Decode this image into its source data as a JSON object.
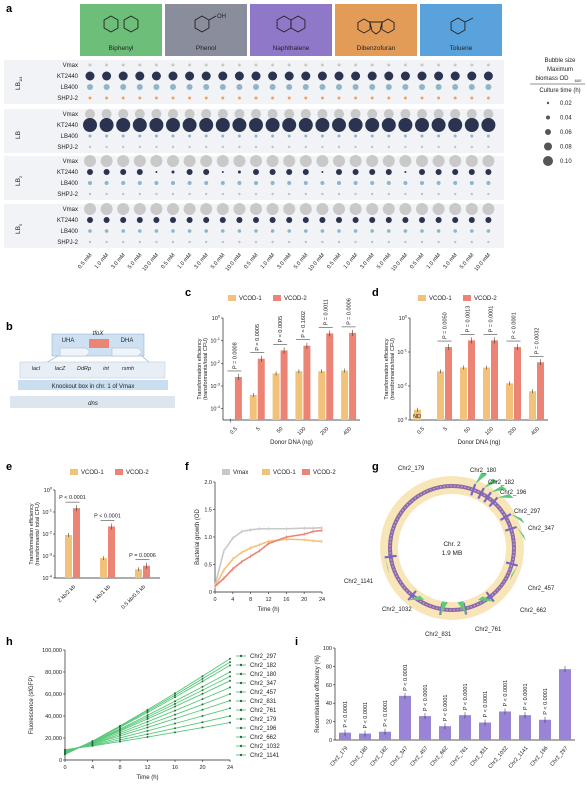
{
  "panel_labels": {
    "a": "a",
    "b": "b",
    "c": "c",
    "d": "d",
    "e": "e",
    "f": "f",
    "g": "g",
    "h": "h",
    "i": "i"
  },
  "colors": {
    "vmax": "#c9c9c9",
    "vcod1": "#f2c27b",
    "vcod2": "#ec8476",
    "kt": "#2b3350",
    "lb400": "#8fb4cc",
    "shpj": "#f0a25d",
    "purple": "#9a84d6",
    "green": "#5ec97a",
    "ring": "#f8e5b8"
  },
  "panel_a": {
    "substrates": [
      {
        "name": "Biphenyl",
        "color": "#6dbe78"
      },
      {
        "name": "Phenol",
        "color": "#8a8d9c"
      },
      {
        "name": "Naphthalene",
        "color": "#8f78c8"
      },
      {
        "name": "Dibenzofuran",
        "color": "#e39c58"
      },
      {
        "name": "Toluene",
        "color": "#5aa2db"
      }
    ],
    "phenol_oh": "OH",
    "media": [
      {
        "label": "LB",
        "sub": "1/4"
      },
      {
        "label": "LB",
        "sub": ""
      },
      {
        "label": "LB",
        "sub": "2"
      },
      {
        "label": "LB",
        "sub": "5"
      }
    ],
    "strains": [
      "Vmax",
      "KT2440",
      "LB400",
      "SHPJ-2"
    ],
    "concentrations": [
      "0.5 mM",
      "1.0 mM",
      "3.0 mM",
      "5.0 mM",
      "10.0 mM"
    ],
    "legend_title_1": "Bubble size",
    "legend_title_2": "Maximum",
    "legend_title_3": "biomass OD",
    "legend_title_sub": "600",
    "legend_subtitle": "Culture time (h)",
    "legend_sizes": [
      "0.02",
      "0.04",
      "0.06",
      "0.08",
      "0.10"
    ]
  },
  "panel_b": {
    "uha": "UHA",
    "dha": "DHA",
    "tfox": "tfoX",
    "laci": "lacI",
    "lacz": "lacZ",
    "ddrp": "DdRp",
    "int": "int",
    "rsmh": "rsmh",
    "knockout": "Knockout box in chr. 1 of Vmax",
    "dns": "dns"
  },
  "panel_c": {
    "legend": [
      "VCOD-1",
      "VCOD-2"
    ],
    "ylabel_1": "Transformation efficiency",
    "ylabel_2": "(transformants/total CFU)",
    "xlabel": "Donor DNA (ng)",
    "categories": [
      "0.5",
      "5",
      "50",
      "100",
      "200",
      "400"
    ],
    "vcod1": [
      3e-05,
      0.0004,
      0.0036,
      0.0045,
      0.0045,
      0.0048
    ],
    "vcod2": [
      0.0025,
      0.016,
      0.037,
      0.06,
      0.21,
      0.22
    ],
    "pvalues": [
      "P = 0.0008",
      "P = 0.0005",
      "P = 0.0005",
      "P = 0.1602",
      "P = 0.0011",
      "P = 0.0006"
    ],
    "yticks": [
      "10^0",
      "10^-1",
      "10^-2",
      "10^-3",
      "10^-4"
    ]
  },
  "panel_d": {
    "legend": [
      "VCOD-1",
      "VCOD-2"
    ],
    "ylabel_1": "Transformation efficiency",
    "ylabel_2": "(transformants/total CFU)",
    "xlabel": "Donor DNA (ng)",
    "categories": [
      "0.5",
      "5",
      "50",
      "100",
      "200",
      "400"
    ],
    "vcod1": [
      0.002,
      0.027,
      0.035,
      0.035,
      0.012,
      0.007
    ],
    "vcod2": [
      null,
      0.14,
      0.22,
      0.22,
      0.14,
      0.05
    ],
    "nd": "ND",
    "pvalues": [
      "P = 0.0050",
      "P = 0.0013",
      "P = 0.0001",
      "P < 0.0001",
      "P = 0.0032"
    ],
    "yticks": [
      "10^0",
      "10^-1",
      "10^-2",
      "10^-3"
    ]
  },
  "panel_e": {
    "legend": [
      "VCOD-1",
      "VCOD-2"
    ],
    "ylabel_1": "Transformation efficiency",
    "ylabel_2": "(transformants/ total CFU)",
    "categories": [
      "2 kb/2 kb",
      "1 kb/1 kb",
      "0.5 kb/0.5 kb"
    ],
    "vcod1": [
      0.009,
      0.0008,
      0.00025
    ],
    "vcod2": [
      0.15,
      0.022,
      0.00036
    ],
    "pvalues": [
      "P < 0.0001",
      "P < 0.0001",
      "P = 0.0006"
    ],
    "yticks": [
      "10^0",
      "10^-1",
      "10^-2",
      "10^-3",
      "10^-4"
    ]
  },
  "panel_f": {
    "legend": [
      "Vmax",
      "VCOD-1",
      "VCOD-2"
    ],
    "ylabel": "Bacterial growth (OD",
    "ylabel_sub": "600",
    "xlabel": "Time (h)",
    "x": [
      0,
      2,
      4,
      6,
      8,
      10,
      12,
      16,
      20,
      22,
      24
    ],
    "vmax": [
      0.12,
      0.75,
      0.98,
      1.1,
      1.13,
      1.15,
      1.15,
      1.15,
      1.16,
      1.16,
      1.17
    ],
    "vcod1": [
      0.1,
      0.4,
      0.6,
      0.72,
      0.8,
      0.86,
      0.92,
      0.96,
      0.95,
      0.93,
      0.92
    ],
    "vcod2": [
      0.1,
      0.25,
      0.42,
      0.55,
      0.65,
      0.75,
      0.88,
      1.0,
      1.05,
      1.1,
      1.12
    ],
    "xticks": [
      "0",
      "4",
      "8",
      "12",
      "16",
      "20",
      "24"
    ],
    "yticks": [
      "0",
      "0.5",
      "1.0",
      "1.5",
      "2.0"
    ]
  },
  "panel_g": {
    "center_1": "Chr. 2",
    "center_2": "1.9 MB",
    "sites": [
      "Chr2_179",
      "Chr2_180",
      "Chr2_182",
      "Chr2_196",
      "Chr2_297",
      "Chr2_347",
      "Chr2_457",
      "Chr2_662",
      "Chr2_761",
      "Chr2_831",
      "Chr2_1032",
      "Chr2_1141"
    ]
  },
  "panel_h": {
    "ylabel": "Fluorescence (sfGFP)",
    "xlabel": "Time (h)",
    "x": [
      0,
      4,
      8,
      12,
      16,
      20,
      24
    ],
    "series": [
      "Chr2_297",
      "Chr2_182",
      "Chr2_180",
      "Chr2_347",
      "Chr2_457",
      "Chr2_831",
      "Chr2_761",
      "Chr2_179",
      "Chr2_196",
      "Chr2_662",
      "Chr2_1032",
      "Chr2_1141"
    ],
    "final": [
      92000,
      89000,
      86000,
      80000,
      76000,
      72000,
      66000,
      60000,
      54000,
      47000,
      40000,
      34000
    ],
    "xticks": [
      "0",
      "4",
      "8",
      "12",
      "16",
      "20",
      "24"
    ],
    "yticks": [
      "0",
      "20,000",
      "40,000",
      "60,000",
      "80,000",
      "100,000"
    ]
  },
  "panel_i": {
    "ylabel": "Recombination efficiency (%)",
    "categories": [
      "Chr2_179",
      "Chr2_180",
      "Chr2_182",
      "Chr2_347",
      "Chr2_457",
      "Chr2_662",
      "Chr2_761",
      "Chr2_831",
      "Chr2_1032",
      "Chr2_1141",
      "Chr2_196",
      "Chr2_297"
    ],
    "values": [
      8,
      7,
      9,
      48,
      26,
      15,
      27,
      19,
      31,
      27,
      22,
      77
    ],
    "pvalues": [
      "P < 0.0001",
      "P < 0.0001",
      "P < 0.0001",
      "P < 0.0001",
      "P < 0.0001",
      "P < 0.0001",
      "P < 0.0001",
      "P < 0.0001",
      "P < 0.0001",
      "P < 0.0001",
      "P < 0.0001"
    ],
    "yticks": [
      "0",
      "20",
      "40",
      "60",
      "80",
      "100"
    ]
  },
  "chart_data": [
    {
      "type": "scatter",
      "title": "",
      "xlabel": "",
      "ylabel": "",
      "categories": [
        "0.5 mM",
        "1.0 mM",
        "3.0 mM",
        "5.0 mM",
        "10.0 mM"
      ],
      "note": "bubble matrix"
    },
    {
      "type": "bar",
      "categories": [
        "0.5",
        "5",
        "50",
        "100",
        "200",
        "400"
      ],
      "xlabel": "Donor DNA (ng)",
      "ylabel": "Transformation efficiency (transformants/total CFU)",
      "series": [
        {
          "name": "VCOD-1",
          "values": [
            3e-05,
            0.0004,
            0.0036,
            0.0045,
            0.0045,
            0.0048
          ]
        },
        {
          "name": "VCOD-2",
          "values": [
            0.0025,
            0.016,
            0.037,
            0.06,
            0.21,
            0.22
          ]
        }
      ]
    },
    {
      "type": "bar",
      "categories": [
        "0.5",
        "5",
        "50",
        "100",
        "200",
        "400"
      ],
      "xlabel": "Donor DNA (ng)",
      "ylabel": "Transformation efficiency (transformants/total CFU)",
      "series": [
        {
          "name": "VCOD-1",
          "values": [
            0.002,
            0.027,
            0.035,
            0.035,
            0.012,
            0.007
          ]
        },
        {
          "name": "VCOD-2",
          "values": [
            null,
            0.14,
            0.22,
            0.22,
            0.14,
            0.05
          ]
        }
      ]
    },
    {
      "type": "bar",
      "categories": [
        "2 kb/2 kb",
        "1 kb/1 kb",
        "0.5 kb/0.5 kb"
      ],
      "ylabel": "Transformation efficiency (transformants/ total CFU)",
      "series": [
        {
          "name": "VCOD-1",
          "values": [
            0.009,
            0.0008,
            0.00025
          ]
        },
        {
          "name": "VCOD-2",
          "values": [
            0.15,
            0.022,
            0.00036
          ]
        }
      ]
    },
    {
      "type": "line",
      "x": [
        0,
        2,
        4,
        6,
        8,
        10,
        12,
        16,
        20,
        22,
        24
      ],
      "xlabel": "Time (h)",
      "ylabel": "Bacterial growth (OD600)",
      "series": [
        {
          "name": "Vmax",
          "values": [
            0.12,
            0.75,
            0.98,
            1.1,
            1.13,
            1.15,
            1.15,
            1.15,
            1.16,
            1.16,
            1.17
          ]
        },
        {
          "name": "VCOD-1",
          "values": [
            0.1,
            0.4,
            0.6,
            0.72,
            0.8,
            0.86,
            0.92,
            0.96,
            0.95,
            0.93,
            0.92
          ]
        },
        {
          "name": "VCOD-2",
          "values": [
            0.1,
            0.25,
            0.42,
            0.55,
            0.65,
            0.75,
            0.88,
            1.0,
            1.05,
            1.1,
            1.12
          ]
        }
      ]
    },
    {
      "type": "line",
      "x": [
        0,
        4,
        8,
        12,
        16,
        20,
        24
      ],
      "xlabel": "Time (h)",
      "ylabel": "Fluorescence (sfGFP)"
    },
    {
      "type": "bar",
      "categories": [
        "Chr2_179",
        "Chr2_180",
        "Chr2_182",
        "Chr2_347",
        "Chr2_457",
        "Chr2_662",
        "Chr2_761",
        "Chr2_831",
        "Chr2_1032",
        "Chr2_1141",
        "Chr2_196",
        "Chr2_297"
      ],
      "ylabel": "Recombination efficiency (%)",
      "values": [
        8,
        7,
        9,
        48,
        26,
        15,
        27,
        19,
        31,
        27,
        22,
        77
      ],
      "ylim": [
        0,
        100
      ]
    }
  ]
}
